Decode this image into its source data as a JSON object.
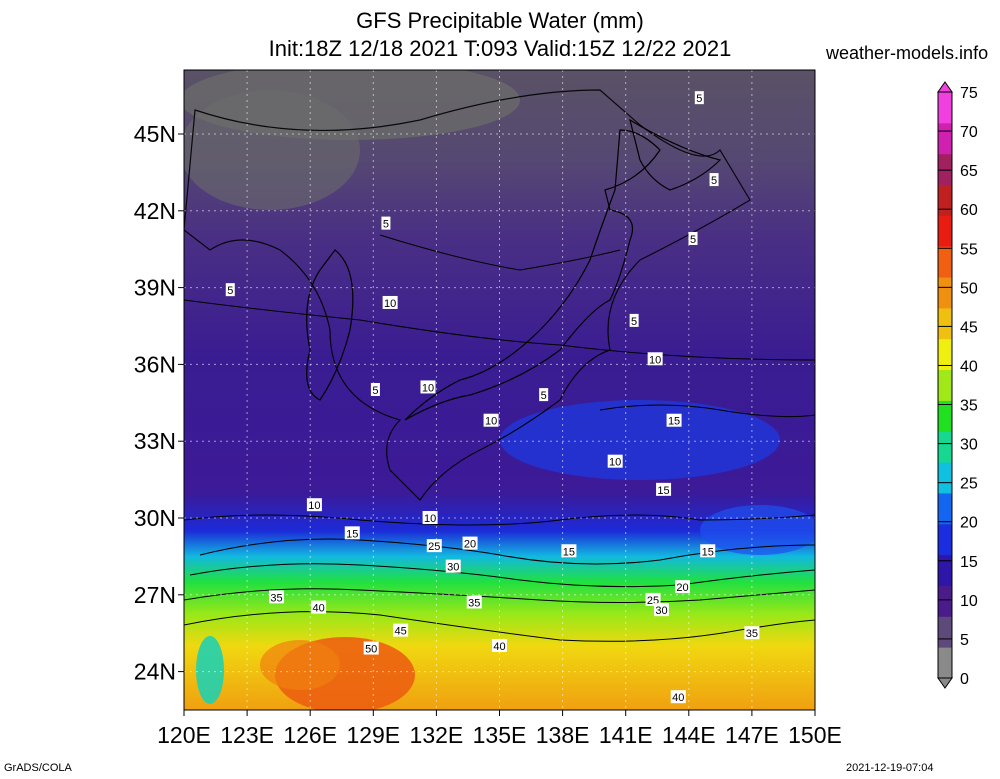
{
  "header": {
    "title": "GFS Precipitable Water (mm)",
    "subtitle": "Init:18Z 12/18 2021 T:093 Valid:15Z 12/22 2021",
    "site": "weather-models.info"
  },
  "footer": {
    "left": "GrADS/COLA",
    "right": "2021-12-19-07:04"
  },
  "chart_data": {
    "type": "heatmap",
    "title": "GFS Precipitable Water (mm)",
    "x_ticks": [
      "120E",
      "123E",
      "126E",
      "129E",
      "132E",
      "135E",
      "138E",
      "141E",
      "144E",
      "147E",
      "150E"
    ],
    "x_values": [
      120,
      123,
      126,
      129,
      132,
      135,
      138,
      141,
      144,
      147,
      150
    ],
    "y_ticks": [
      "24N",
      "27N",
      "30N",
      "33N",
      "36N",
      "39N",
      "42N",
      "45N"
    ],
    "y_values": [
      24,
      27,
      30,
      33,
      36,
      39,
      42,
      45
    ],
    "xlim": [
      120,
      150
    ],
    "ylim": [
      22.5,
      47.5
    ],
    "grid": true,
    "colorbar": {
      "labels": [
        "0",
        "5",
        "10",
        "15",
        "20",
        "25",
        "30",
        "35",
        "40",
        "45",
        "50",
        "55",
        "60",
        "65",
        "70",
        "75"
      ],
      "colors": [
        "#8a8a8a",
        "#5e4a7a",
        "#4a1c8a",
        "#2e16a8",
        "#1a2ee0",
        "#1466f0",
        "#10c0e0",
        "#16d890",
        "#20e020",
        "#a0e818",
        "#f0f010",
        "#f0c010",
        "#f09010",
        "#f06010",
        "#e81c10",
        "#c02020",
        "#a02060",
        "#d020b0",
        "#f040e0"
      ]
    },
    "contour_labels": [
      {
        "text": "5",
        "lon": 144.5,
        "lat": 46.4
      },
      {
        "text": "5",
        "lon": 145.2,
        "lat": 43.2
      },
      {
        "text": "5",
        "lon": 144.2,
        "lat": 40.9
      },
      {
        "text": "5",
        "lon": 129.6,
        "lat": 41.5
      },
      {
        "text": "5",
        "lon": 122.2,
        "lat": 38.9
      },
      {
        "text": "10",
        "lon": 129.8,
        "lat": 38.4
      },
      {
        "text": "5",
        "lon": 141.4,
        "lat": 37.7
      },
      {
        "text": "10",
        "lon": 142.4,
        "lat": 36.2
      },
      {
        "text": "5",
        "lon": 129.1,
        "lat": 35.0
      },
      {
        "text": "10",
        "lon": 131.6,
        "lat": 35.1
      },
      {
        "text": "5",
        "lon": 137.1,
        "lat": 34.8
      },
      {
        "text": "10",
        "lon": 134.6,
        "lat": 33.8
      },
      {
        "text": "15",
        "lon": 143.3,
        "lat": 33.8
      },
      {
        "text": "10",
        "lon": 140.5,
        "lat": 32.2
      },
      {
        "text": "15",
        "lon": 142.8,
        "lat": 31.1
      },
      {
        "text": "10",
        "lon": 126.2,
        "lat": 30.5
      },
      {
        "text": "10",
        "lon": 131.7,
        "lat": 30.0
      },
      {
        "text": "15",
        "lon": 128.0,
        "lat": 29.4
      },
      {
        "text": "25",
        "lon": 131.9,
        "lat": 28.9
      },
      {
        "text": "20",
        "lon": 133.6,
        "lat": 29.0
      },
      {
        "text": "15",
        "lon": 138.3,
        "lat": 28.7
      },
      {
        "text": "15",
        "lon": 144.9,
        "lat": 28.7
      },
      {
        "text": "30",
        "lon": 132.8,
        "lat": 28.1
      },
      {
        "text": "35",
        "lon": 124.4,
        "lat": 26.9
      },
      {
        "text": "40",
        "lon": 126.4,
        "lat": 26.5
      },
      {
        "text": "35",
        "lon": 133.8,
        "lat": 26.7
      },
      {
        "text": "25",
        "lon": 142.3,
        "lat": 26.8
      },
      {
        "text": "20",
        "lon": 143.7,
        "lat": 27.3
      },
      {
        "text": "30",
        "lon": 142.7,
        "lat": 26.4
      },
      {
        "text": "45",
        "lon": 130.3,
        "lat": 25.6
      },
      {
        "text": "35",
        "lon": 147.0,
        "lat": 25.5
      },
      {
        "text": "50",
        "lon": 128.9,
        "lat": 24.9
      },
      {
        "text": "40",
        "lon": 135.0,
        "lat": 25.0
      },
      {
        "text": "40",
        "lon": 143.5,
        "lat": 23.0
      }
    ]
  }
}
